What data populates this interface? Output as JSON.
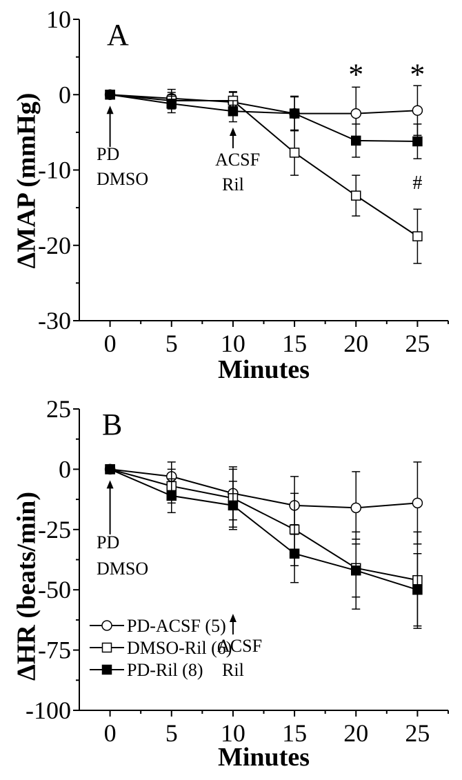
{
  "chart_data": [
    {
      "type": "line",
      "panel_label": "A",
      "xlabel": "Minutes",
      "ylabel": "ΔMAP (mmHg)",
      "xlim": [
        -2.5,
        27.5
      ],
      "ylim": [
        -30,
        10
      ],
      "xticks": [
        0,
        5,
        10,
        15,
        20,
        25
      ],
      "yticks": [
        -30,
        -20,
        -10,
        0,
        10
      ],
      "x": [
        0,
        5,
        10,
        15,
        20,
        25
      ],
      "series": [
        {
          "name": "PD-ACSF (5)",
          "marker": "open-circle",
          "values": [
            0,
            -0.5,
            -1.0,
            -2.5,
            -2.5,
            -2.1
          ],
          "errors": [
            0.5,
            1.2,
            1.3,
            2.3,
            3.5,
            3.3
          ]
        },
        {
          "name": "DMSO-Ril (6)",
          "marker": "open-square",
          "values": [
            0,
            -0.8,
            -0.8,
            -7.7,
            -13.4,
            -18.8
          ],
          "errors": [
            0.5,
            1.1,
            1.2,
            3.0,
            2.7,
            3.6
          ]
        },
        {
          "name": "PD-Ril (8)",
          "marker": "filled-square",
          "values": [
            0,
            -1.2,
            -2.2,
            -2.5,
            -6.1,
            -6.2
          ],
          "errors": [
            0.5,
            1.2,
            1.4,
            2.2,
            2.2,
            2.3
          ]
        }
      ],
      "annotations": [
        {
          "text": "PD",
          "x": 0
        },
        {
          "text": "DMSO",
          "x": 0
        },
        {
          "text": "ACSF",
          "x": 10
        },
        {
          "text": "Ril",
          "x": 10
        }
      ],
      "markers": [
        {
          "text": "*",
          "x": 20,
          "y": 3
        },
        {
          "text": "*",
          "x": 25,
          "y": 3
        },
        {
          "text": "#",
          "x": 25,
          "y": -12.5
        }
      ]
    },
    {
      "type": "line",
      "panel_label": "B",
      "xlabel": "Minutes",
      "ylabel": "ΔHR (beats/min)",
      "xlim": [
        -2.5,
        27.5
      ],
      "ylim": [
        -100,
        25
      ],
      "xticks": [
        0,
        5,
        10,
        15,
        20,
        25
      ],
      "yticks": [
        -100,
        -75,
        -50,
        -25,
        0,
        25
      ],
      "x": [
        0,
        5,
        10,
        15,
        20,
        25
      ],
      "series": [
        {
          "name": "PD-ACSF (5)",
          "marker": "open-circle",
          "values": [
            0,
            -3,
            -10,
            -15,
            -16,
            -14
          ],
          "errors": [
            1,
            6,
            11,
            12,
            15,
            17
          ]
        },
        {
          "name": "DMSO-Ril (6)",
          "marker": "open-square",
          "values": [
            0,
            -7,
            -12,
            -25,
            -41,
            -46
          ],
          "errors": [
            1,
            7,
            12,
            15,
            12,
            20
          ]
        },
        {
          "name": "PD-Ril (8)",
          "marker": "filled-square",
          "values": [
            0,
            -11,
            -15,
            -35,
            -42,
            -50
          ],
          "errors": [
            1,
            7,
            10,
            12,
            16,
            15
          ]
        }
      ],
      "annotations": [
        {
          "text": "PD",
          "x": 0
        },
        {
          "text": "DMSO",
          "x": 0
        },
        {
          "text": "ACSF",
          "x": 10
        },
        {
          "text": "Ril",
          "x": 10
        }
      ],
      "legend": {
        "placement": "bottom-left",
        "entries": [
          "PD-ACSF (5)",
          "DMSO-Ril (6)",
          "PD-Ril (8)"
        ]
      }
    }
  ]
}
